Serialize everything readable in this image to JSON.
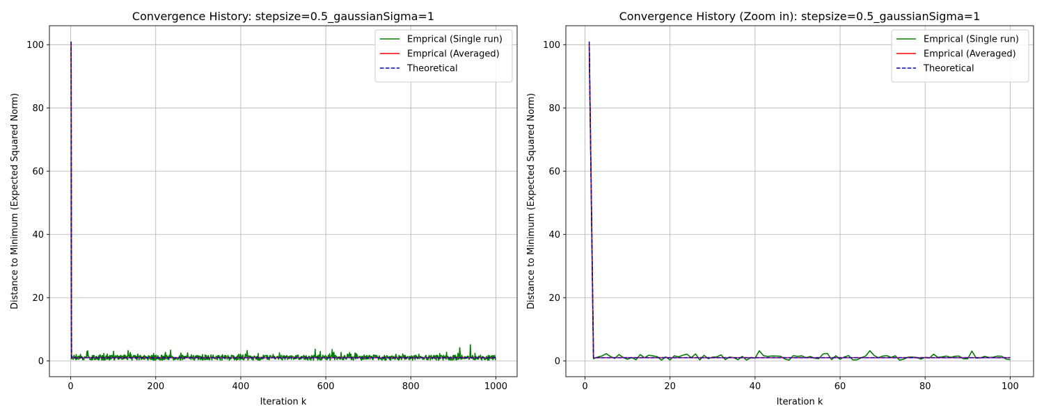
{
  "chart_data": [
    {
      "type": "line",
      "title": "Convergence History: stepsize=0.5_gaussianSigma=1",
      "xlabel": "Iteration k",
      "ylabel": "Distance to Minimum (Expected Squared Norm)",
      "xlim": [
        -50,
        1050
      ],
      "ylim": [
        -5,
        106
      ],
      "xticks": [
        0,
        200,
        400,
        600,
        800,
        1000
      ],
      "yticks": [
        0,
        20,
        40,
        60,
        80,
        100
      ],
      "grid": true,
      "legend_position": "top-right",
      "series": [
        {
          "name": "Emprical (Single run)",
          "color": "#008000",
          "style": "solid",
          "kind": "noisy",
          "x_start": 1,
          "x_end": 1000,
          "start_value": 100,
          "level": 1.0,
          "spikes": [
            [
              40,
              3.2
            ],
            [
              135,
              3.3
            ],
            [
              235,
              3.4
            ],
            [
              415,
              3.3
            ],
            [
              575,
              3.7
            ],
            [
              615,
              3.6
            ],
            [
              915,
              4.2
            ],
            [
              940,
              5.1
            ]
          ]
        },
        {
          "name": "Emprical (Averaged)",
          "color": "#ff0000",
          "style": "solid",
          "kind": "smooth",
          "x_start": 1,
          "x_end": 1000,
          "start_value": 100,
          "level": 1.0
        },
        {
          "name": "Theoretical",
          "color": "#0000cd",
          "style": "dashed",
          "kind": "smooth",
          "x_start": 1,
          "x_end": 1000,
          "start_value": 101,
          "level": 1.0
        }
      ]
    },
    {
      "type": "line",
      "title": "Convergence History (Zoom in): stepsize=0.5_gaussianSigma=1",
      "xlabel": "Iteration k",
      "ylabel": "Distance to Minimum (Expected Squared Norm)",
      "xlim": [
        -4.5,
        105.5
      ],
      "ylim": [
        -5,
        106
      ],
      "xticks": [
        0,
        20,
        40,
        60,
        80,
        100
      ],
      "yticks": [
        0,
        20,
        40,
        60,
        80,
        100
      ],
      "grid": true,
      "legend_position": "top-right",
      "series": [
        {
          "name": "Emprical (Single run)",
          "color": "#008000",
          "style": "solid",
          "kind": "noisy",
          "x_start": 1,
          "x_end": 100,
          "start_value": 100,
          "level": 1.0,
          "spikes": [
            [
              5,
              2.3
            ],
            [
              8,
              2.0
            ],
            [
              15,
              1.8
            ],
            [
              26,
              2.2
            ],
            [
              32,
              1.9
            ],
            [
              41,
              3.2
            ],
            [
              56,
              2.2
            ],
            [
              67,
              3.2
            ],
            [
              82,
              2.1
            ],
            [
              91,
              3.1
            ]
          ]
        },
        {
          "name": "Emprical (Averaged)",
          "color": "#ff0000",
          "style": "solid",
          "kind": "smooth",
          "x_start": 1,
          "x_end": 100,
          "start_value": 100,
          "level": 1.0
        },
        {
          "name": "Theoretical",
          "color": "#0000cd",
          "style": "dashed",
          "kind": "smooth",
          "x_start": 1,
          "x_end": 100,
          "start_value": 101,
          "level": 1.0
        }
      ]
    }
  ]
}
